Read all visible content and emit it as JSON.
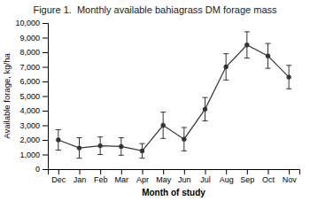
{
  "chart_data": {
    "type": "line",
    "title": "Figure 1.  Monthly available bahiagrass DM forage mass",
    "x_label": "Month of study",
    "y_label": "Available forage, kg/ha",
    "categories": [
      "Dec",
      "Jan",
      "Feb",
      "Mar",
      "Apr",
      "May",
      "Jun",
      "Jul",
      "Aug",
      "Sep",
      "Oct",
      "Nov"
    ],
    "values": [
      2000,
      1450,
      1600,
      1550,
      1250,
      3000,
      2050,
      4100,
      7000,
      8500,
      7750,
      6300
    ],
    "errors": [
      700,
      700,
      600,
      600,
      500,
      900,
      800,
      800,
      900,
      900,
      850,
      800
    ],
    "color": "#333333",
    "marker": "circle",
    "line_style": "solid",
    "grid": false,
    "ylim": [
      0,
      10000
    ],
    "yticks": [
      0,
      {
        "value": 1000,
        "label": "1,000"
      },
      {
        "value": 2000,
        "label": "2,000"
      },
      {
        "value": 3000,
        "label": "3,000"
      },
      {
        "value": 4000,
        "label": "4,000"
      },
      {
        "value": 5000,
        "label": "5,000"
      },
      {
        "value": 6000,
        "label": "6,000"
      },
      {
        "value": 7000,
        "label": "7,000"
      },
      {
        "value": 8000,
        "label": "8,000"
      },
      {
        "value": 9000,
        "label": "9,000"
      },
      {
        "value": 10000,
        "label": "10,000"
      }
    ]
  }
}
